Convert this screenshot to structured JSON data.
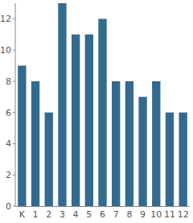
{
  "chart_data": {
    "type": "bar",
    "categories": [
      "K",
      "1",
      "2",
      "3",
      "4",
      "5",
      "6",
      "7",
      "8",
      "9",
      "10",
      "11",
      "12"
    ],
    "values": [
      9,
      8,
      6,
      13,
      11,
      11,
      12,
      8,
      8,
      7,
      8,
      6,
      6
    ],
    "color": "#336a90",
    "ylim": [
      0,
      13
    ],
    "yticks": [
      0,
      2,
      4,
      6,
      8,
      10,
      12
    ],
    "grid": false
  }
}
